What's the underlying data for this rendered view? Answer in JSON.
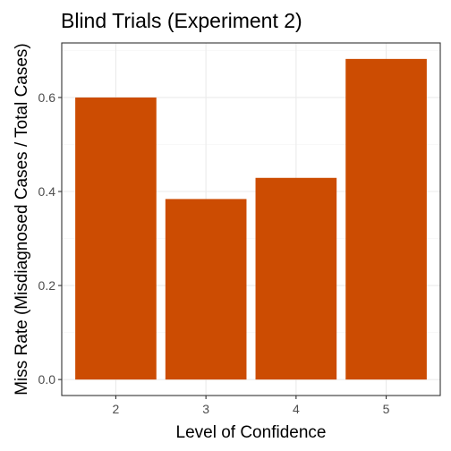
{
  "chart_data": {
    "type": "bar",
    "title": "Blind Trials (Experiment 2)",
    "xlabel": "Level of Confidence",
    "ylabel": "Miss Rate (Misdiagnosed Cases / Total Cases)",
    "categories": [
      "2",
      "3",
      "4",
      "5"
    ],
    "values": [
      0.6,
      0.384,
      0.429,
      0.682
    ],
    "ylim": [
      -0.034,
      0.716
    ],
    "yticks": [
      0.0,
      0.2,
      0.4,
      0.6
    ],
    "ytick_labels": [
      "0.0",
      "0.2",
      "0.4",
      "0.6"
    ],
    "grid": true,
    "bar_color": "#CC4C02",
    "panel_border_color": "#333333",
    "grid_major_color": "#ebebeb",
    "grid_minor_color": "#f5f5f5"
  }
}
